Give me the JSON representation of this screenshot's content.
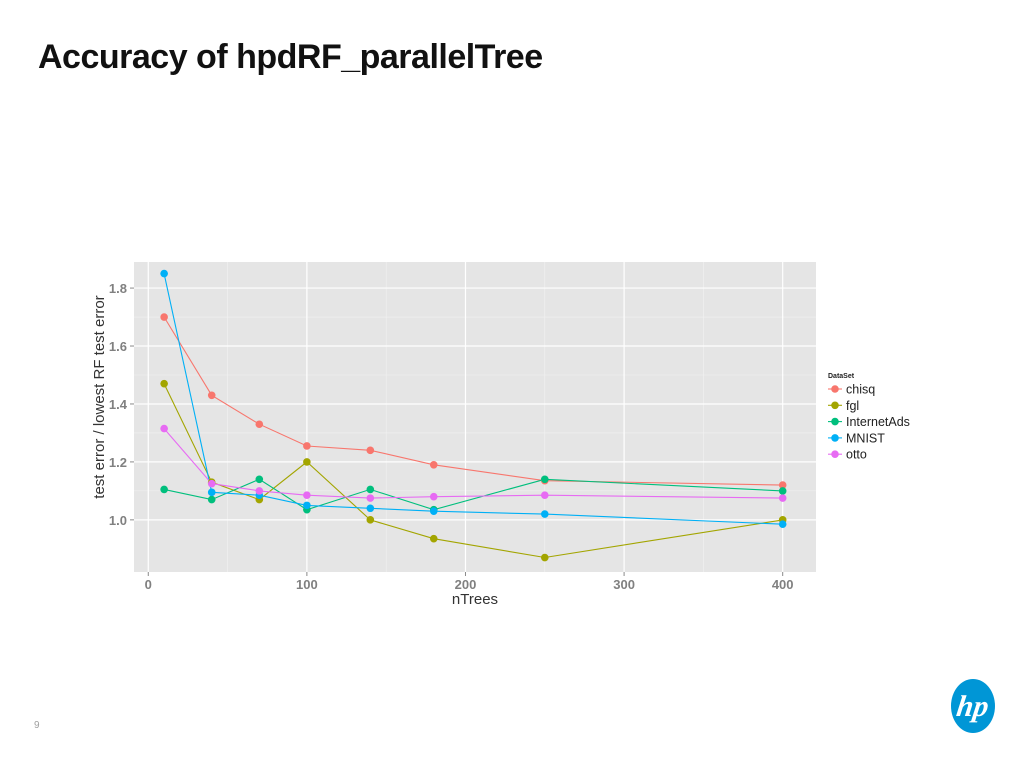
{
  "slide": {
    "title": "Accuracy of hpdRF_parallelTree",
    "page_number": "9",
    "logo_text": "hp"
  },
  "chart_data": {
    "type": "line",
    "title": "",
    "xlabel": "nTrees",
    "ylabel": "test error / lowest RF test error",
    "xlim": [
      -9,
      421
    ],
    "ylim": [
      0.82,
      1.89
    ],
    "xticks": [
      0,
      100,
      200,
      300,
      400
    ],
    "yticks": [
      1.0,
      1.2,
      1.4,
      1.6,
      1.8
    ],
    "ytick_labels": [
      "1.0",
      "1.2",
      "1.4",
      "1.6",
      "1.8"
    ],
    "grid": true,
    "background": "#e5e5e5",
    "legend": {
      "title": "DataSet",
      "position": "right"
    },
    "series": [
      {
        "name": "chisq",
        "color": "#f8766d",
        "x": [
          10,
          40,
          70,
          100,
          140,
          180,
          250,
          400
        ],
        "y": [
          1.7,
          1.43,
          1.33,
          1.255,
          1.24,
          1.19,
          1.135,
          1.12
        ]
      },
      {
        "name": "fgl",
        "color": "#a3a500",
        "x": [
          10,
          40,
          70,
          100,
          140,
          180,
          250,
          400
        ],
        "y": [
          1.47,
          1.13,
          1.07,
          1.2,
          1.0,
          0.935,
          0.87,
          1.0
        ]
      },
      {
        "name": "InternetAds",
        "color": "#00bf7d",
        "x": [
          10,
          40,
          70,
          100,
          140,
          180,
          250,
          400
        ],
        "y": [
          1.105,
          1.07,
          1.14,
          1.035,
          1.105,
          1.035,
          1.14,
          1.1
        ]
      },
      {
        "name": "MNIST",
        "color": "#00b0f6",
        "x": [
          10,
          40,
          70,
          100,
          140,
          180,
          250,
          400
        ],
        "y": [
          1.85,
          1.095,
          1.085,
          1.05,
          1.04,
          1.03,
          1.02,
          0.985
        ]
      },
      {
        "name": "otto",
        "color": "#e76bf3",
        "x": [
          10,
          40,
          70,
          100,
          140,
          180,
          250,
          400
        ],
        "y": [
          1.315,
          1.125,
          1.1,
          1.085,
          1.075,
          1.08,
          1.085,
          1.075
        ]
      }
    ]
  }
}
